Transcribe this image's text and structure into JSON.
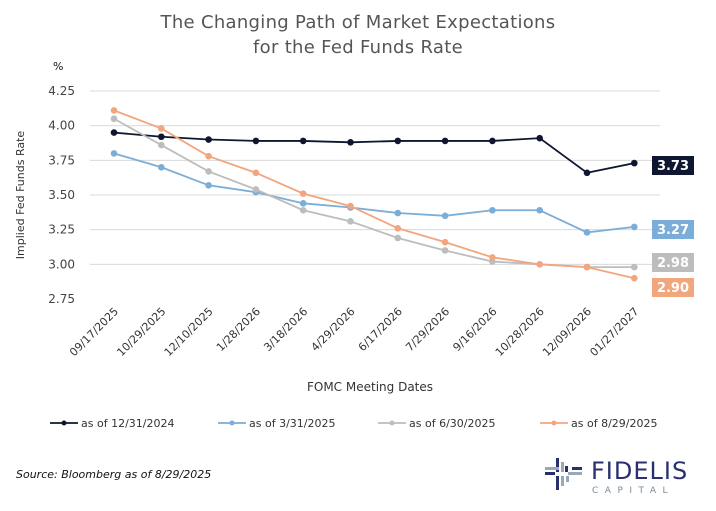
{
  "chart_data": {
    "type": "line",
    "title": [
      "The Changing Path of Market Expectations",
      "for the Fed Funds Rate"
    ],
    "unit_label": "%",
    "xlabel": "FOMC Meeting Dates",
    "ylabel": "Implied Fed Funds Rate",
    "ylim": [
      2.75,
      4.25
    ],
    "yticks": [
      "4.25",
      "4.00",
      "3.75",
      "3.50",
      "3.25",
      "3.00",
      "2.75"
    ],
    "grid": true,
    "legend_position": "bottom",
    "categories": [
      "09/17/2025",
      "10/29/2025",
      "12/10/2025",
      "1/28/2026",
      "3/18/2026",
      "4/29/2026",
      "6/17/2026",
      "7/29/2026",
      "9/16/2026",
      "10/28/2026",
      "12/09/2026",
      "01/27/2027"
    ],
    "series": [
      {
        "name": "as of 12/31/2024",
        "color": "#0f1730",
        "end_label": "3.73",
        "values": [
          3.95,
          3.92,
          3.9,
          3.89,
          3.89,
          3.88,
          3.89,
          3.89,
          3.89,
          3.91,
          3.66,
          3.73
        ]
      },
      {
        "name": "as of 3/31/2025",
        "color": "#7aaed8",
        "end_label": "3.27",
        "values": [
          3.8,
          3.7,
          3.57,
          3.52,
          3.44,
          3.41,
          3.37,
          3.35,
          3.39,
          3.39,
          3.23,
          3.27
        ]
      },
      {
        "name": "as of 6/30/2025",
        "color": "#bdbdbd",
        "end_label": "2.98",
        "values": [
          4.05,
          3.86,
          3.67,
          3.54,
          3.39,
          3.31,
          3.19,
          3.1,
          3.02,
          3.0,
          2.98,
          2.98
        ]
      },
      {
        "name": "as of 8/29/2025",
        "color": "#f2a67e",
        "end_label": "2.90",
        "values": [
          4.11,
          3.98,
          3.78,
          3.66,
          3.51,
          3.42,
          3.26,
          3.16,
          3.05,
          3.0,
          2.98,
          2.9
        ]
      }
    ]
  },
  "source": "Source: Bloomberg as of 8/29/2025",
  "logo": {
    "name": "FIDELIS",
    "sub": "CAPITAL",
    "color": "#2a2f6e"
  }
}
